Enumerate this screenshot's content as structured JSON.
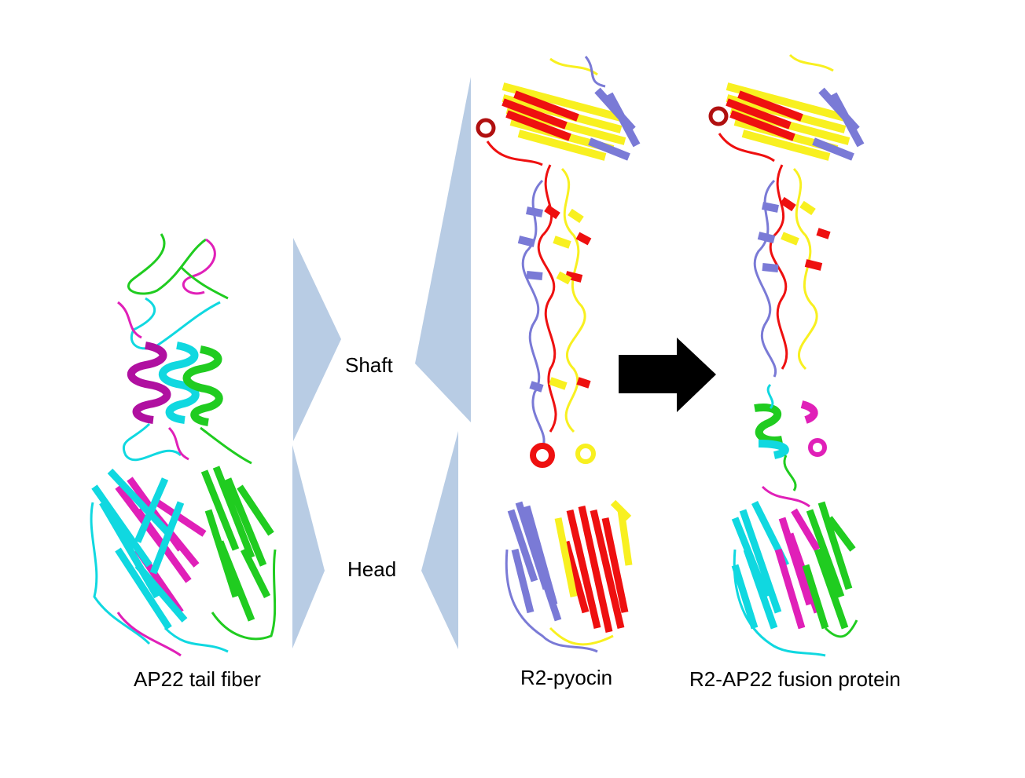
{
  "labels": {
    "ap22": "AP22 tail fiber",
    "r2": "R2-pyocin",
    "fusion": "R2-AP22 fusion protein",
    "shaft": "Shaft",
    "head": "Head"
  },
  "colors": {
    "ap22_chains": [
      "#e020b8",
      "#10d8e0",
      "#20cc20"
    ],
    "r2_chains": [
      "#f8f020",
      "#ee1010",
      "#7a7ad6"
    ],
    "wedge": "#b8cce4",
    "arrow": "#000000"
  },
  "icons": {
    "arrow": "right-arrow-icon",
    "wedges": "wedge-pointer-icon"
  }
}
